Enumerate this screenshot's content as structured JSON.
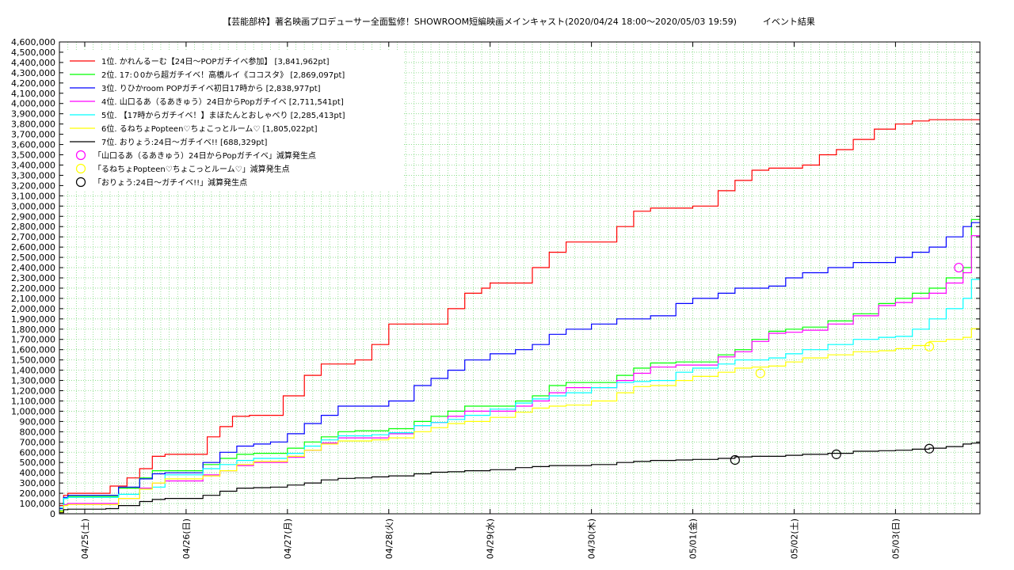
{
  "chart_data": {
    "type": "line",
    "title": "【芸能部枠】著名映画プロデューサー全面監修！SHOWROOM短編映画メインキャスト(2020/04/24 18:00〜2020/05/03 19:59)　　　イベント結果",
    "xlabel": "",
    "ylabel": "",
    "ylim": [
      0,
      4600000
    ],
    "y_tick_step": 100000,
    "y_tick_labels": [
      "0",
      "100,000",
      "200,000",
      "300,000",
      "400,000",
      "500,000",
      "600,000",
      "700,000",
      "800,000",
      "900,000",
      "1,000,000",
      "1,100,000",
      "1,200,000",
      "1,300,000",
      "1,400,000",
      "1,500,000",
      "1,600,000",
      "1,700,000",
      "1,800,000",
      "1,900,000",
      "2,000,000",
      "2,100,000",
      "2,200,000",
      "2,300,000",
      "2,400,000",
      "2,500,000",
      "2,600,000",
      "2,700,000",
      "2,800,000",
      "2,900,000",
      "3,000,000",
      "3,100,000",
      "3,200,000",
      "3,300,000",
      "3,400,000",
      "3,500,000",
      "3,600,000",
      "3,700,000",
      "3,800,000",
      "3,900,000",
      "4,000,000",
      "4,100,000",
      "4,200,000",
      "4,300,000",
      "4,400,000",
      "4,500,000",
      "4,600,000"
    ],
    "x_unit": "hours since 2020/04/24 18:00",
    "xlim": [
      0,
      218
    ],
    "x_ticks": [
      {
        "label": "04/25(土)",
        "x": 6
      },
      {
        "label": "04/26(日)",
        "x": 30
      },
      {
        "label": "04/27(月)",
        "x": 54
      },
      {
        "label": "04/28(火)",
        "x": 78
      },
      {
        "label": "04/29(水)",
        "x": 102
      },
      {
        "label": "04/30(木)",
        "x": 126
      },
      {
        "label": "05/01(金)",
        "x": 150
      },
      {
        "label": "05/02(土)",
        "x": 174
      },
      {
        "label": "05/03(日)",
        "x": 198
      }
    ],
    "grid": true,
    "legend_position": "top-left",
    "series": [
      {
        "name": "1位. かれんるーむ【24日〜POPガチイベ参加】 [3,841,962pt]",
        "color": "#ff0000",
        "x": [
          0,
          1,
          2,
          11,
          12,
          16,
          19,
          22,
          25,
          30,
          35,
          38,
          41,
          45,
          49,
          53,
          58,
          62,
          66,
          70,
          74,
          78,
          84,
          88,
          92,
          96,
          100,
          102,
          108,
          112,
          116,
          120,
          126,
          132,
          136,
          140,
          144,
          150,
          156,
          160,
          164,
          168,
          172,
          176,
          180,
          184,
          188,
          193,
          198,
          202,
          206,
          210,
          214,
          216,
          218
        ],
        "y": [
          80000,
          180000,
          200000,
          200000,
          270000,
          350000,
          440000,
          560000,
          580000,
          580000,
          750000,
          850000,
          950000,
          960000,
          960000,
          1150000,
          1350000,
          1460000,
          1460000,
          1500000,
          1650000,
          1850000,
          1850000,
          1850000,
          2000000,
          2150000,
          2200000,
          2250000,
          2250000,
          2400000,
          2550000,
          2650000,
          2650000,
          2800000,
          2950000,
          2980000,
          2980000,
          3000000,
          3150000,
          3250000,
          3350000,
          3370000,
          3370000,
          3400000,
          3500000,
          3550000,
          3650000,
          3750000,
          3800000,
          3830000,
          3841962,
          3841962,
          3841962,
          3841962,
          3841962
        ]
      },
      {
        "name": "2位. 17:０0から超ガチイベ！高橋ルイ《ココスタ》 [2,869,097pt]",
        "color": "#00ff00",
        "x": [
          0,
          1,
          2,
          11,
          14,
          19,
          22,
          25,
          30,
          34,
          38,
          42,
          46,
          50,
          54,
          58,
          62,
          66,
          70,
          74,
          78,
          84,
          88,
          92,
          96,
          102,
          108,
          112,
          116,
          120,
          126,
          132,
          136,
          140,
          146,
          150,
          156,
          160,
          164,
          168,
          172,
          176,
          182,
          188,
          194,
          198,
          202,
          206,
          210,
          214,
          216,
          218
        ],
        "y": [
          30000,
          150000,
          170000,
          170000,
          250000,
          350000,
          420000,
          420000,
          420000,
          480000,
          540000,
          580000,
          590000,
          590000,
          640000,
          700000,
          750000,
          800000,
          810000,
          810000,
          830000,
          900000,
          950000,
          1000000,
          1050000,
          1050000,
          1100000,
          1150000,
          1250000,
          1280000,
          1280000,
          1350000,
          1420000,
          1470000,
          1480000,
          1480000,
          1550000,
          1600000,
          1700000,
          1780000,
          1800000,
          1820000,
          1880000,
          1950000,
          2050000,
          2100000,
          2150000,
          2200000,
          2300000,
          2400000,
          2869097,
          2869097
        ]
      },
      {
        "name": "3位. りひかroom POPガチイベ初日17時から [2,838,977pt]",
        "color": "#0000ff",
        "x": [
          0,
          1,
          2,
          11,
          14,
          19,
          22,
          25,
          30,
          34,
          38,
          42,
          46,
          50,
          54,
          58,
          62,
          66,
          70,
          74,
          78,
          84,
          88,
          92,
          96,
          102,
          108,
          112,
          116,
          120,
          126,
          132,
          136,
          140,
          146,
          150,
          156,
          160,
          164,
          168,
          172,
          176,
          182,
          188,
          194,
          198,
          202,
          206,
          210,
          214,
          216,
          218
        ],
        "y": [
          50000,
          160000,
          180000,
          180000,
          260000,
          340000,
          390000,
          400000,
          400000,
          500000,
          600000,
          660000,
          680000,
          700000,
          780000,
          880000,
          960000,
          1050000,
          1050000,
          1050000,
          1100000,
          1250000,
          1320000,
          1400000,
          1500000,
          1560000,
          1600000,
          1650000,
          1750000,
          1800000,
          1850000,
          1900000,
          1900000,
          1930000,
          2050000,
          2100000,
          2150000,
          2200000,
          2200000,
          2220000,
          2300000,
          2350000,
          2400000,
          2450000,
          2450000,
          2500000,
          2550000,
          2600000,
          2700000,
          2800000,
          2838977,
          2838977
        ]
      },
      {
        "name": "4位. 山口るあ（るあきゅう）24日からPopガチイベ [2,711,541pt]",
        "color": "#ff00ff",
        "x": [
          0,
          1,
          2,
          11,
          14,
          19,
          22,
          25,
          30,
          34,
          38,
          42,
          46,
          50,
          54,
          58,
          62,
          66,
          70,
          74,
          78,
          84,
          88,
          92,
          96,
          102,
          108,
          112,
          116,
          120,
          126,
          132,
          136,
          140,
          146,
          150,
          156,
          160,
          164,
          168,
          172,
          176,
          182,
          188,
          194,
          198,
          202,
          206,
          210,
          214,
          216,
          218
        ],
        "y": [
          20000,
          90000,
          100000,
          100000,
          150000,
          250000,
          300000,
          320000,
          320000,
          380000,
          420000,
          470000,
          500000,
          500000,
          550000,
          620000,
          690000,
          740000,
          740000,
          740000,
          780000,
          860000,
          890000,
          950000,
          1000000,
          1000000,
          1050000,
          1100000,
          1180000,
          1230000,
          1230000,
          1300000,
          1370000,
          1430000,
          1450000,
          1450000,
          1530000,
          1580000,
          1680000,
          1760000,
          1770000,
          1790000,
          1850000,
          1930000,
          2030000,
          2060000,
          2100000,
          2150000,
          2250000,
          2350000,
          2711541,
          2711541
        ]
      },
      {
        "name": "5位. 【17時からガチイベ！】まほたんとおしゃべり [2,285,413pt]",
        "color": "#00ffff",
        "x": [
          0,
          1,
          2,
          11,
          14,
          19,
          22,
          25,
          30,
          34,
          38,
          42,
          46,
          50,
          54,
          58,
          62,
          66,
          70,
          74,
          78,
          84,
          88,
          92,
          96,
          102,
          108,
          112,
          116,
          120,
          126,
          132,
          136,
          140,
          146,
          150,
          156,
          160,
          164,
          168,
          172,
          176,
          182,
          188,
          194,
          198,
          202,
          206,
          210,
          214,
          216,
          218
        ],
        "y": [
          60000,
          150000,
          160000,
          160000,
          190000,
          240000,
          260000,
          380000,
          380000,
          440000,
          480000,
          520000,
          540000,
          540000,
          590000,
          660000,
          720000,
          760000,
          760000,
          770000,
          790000,
          860000,
          890000,
          920000,
          960000,
          1020000,
          1080000,
          1120000,
          1150000,
          1180000,
          1230000,
          1280000,
          1290000,
          1300000,
          1380000,
          1420000,
          1460000,
          1500000,
          1500000,
          1520000,
          1560000,
          1600000,
          1650000,
          1700000,
          1720000,
          1730000,
          1800000,
          1900000,
          2000000,
          2100000,
          2285413,
          2285413
        ]
      },
      {
        "name": "6位. るねちょPopteen♡ちょこっとルーム♡ [1,805,022pt]",
        "color": "#ffff00",
        "x": [
          0,
          1,
          2,
          11,
          14,
          19,
          22,
          25,
          30,
          34,
          38,
          42,
          46,
          50,
          54,
          58,
          62,
          66,
          70,
          74,
          78,
          84,
          88,
          92,
          96,
          102,
          108,
          112,
          116,
          120,
          126,
          132,
          136,
          140,
          146,
          150,
          156,
          160,
          164,
          168,
          172,
          176,
          182,
          188,
          194,
          198,
          202,
          206,
          210,
          214,
          216,
          218
        ],
        "y": [
          20000,
          80000,
          90000,
          90000,
          150000,
          240000,
          300000,
          340000,
          340000,
          370000,
          420000,
          480000,
          510000,
          510000,
          560000,
          620000,
          680000,
          710000,
          710000,
          720000,
          740000,
          800000,
          840000,
          880000,
          900000,
          940000,
          990000,
          1030000,
          1050000,
          1060000,
          1100000,
          1180000,
          1240000,
          1250000,
          1300000,
          1340000,
          1380000,
          1420000,
          1430000,
          1440000,
          1480000,
          1520000,
          1550000,
          1580000,
          1590000,
          1610000,
          1640000,
          1680000,
          1700000,
          1720000,
          1805022,
          1805022
        ]
      },
      {
        "name": "7位. おりょう:24日〜ガチイベ!! [688,329pt]",
        "color": "#000000",
        "x": [
          0,
          1,
          2,
          6,
          11,
          14,
          19,
          22,
          25,
          30,
          34,
          38,
          42,
          46,
          50,
          54,
          58,
          62,
          66,
          70,
          74,
          78,
          84,
          88,
          92,
          96,
          102,
          108,
          112,
          116,
          120,
          126,
          132,
          136,
          140,
          146,
          150,
          156,
          160,
          164,
          168,
          172,
          176,
          182,
          188,
          194,
          198,
          202,
          206,
          210,
          214,
          216,
          218
        ],
        "y": [
          10000,
          40000,
          45000,
          45000,
          50000,
          80000,
          120000,
          140000,
          150000,
          150000,
          180000,
          220000,
          250000,
          255000,
          260000,
          280000,
          300000,
          330000,
          345000,
          350000,
          360000,
          370000,
          390000,
          405000,
          410000,
          420000,
          430000,
          450000,
          460000,
          470000,
          470000,
          480000,
          500000,
          510000,
          520000,
          525000,
          530000,
          540000,
          555000,
          560000,
          560000,
          570000,
          580000,
          590000,
          610000,
          615000,
          620000,
          630000,
          640000,
          655000,
          680000,
          688329,
          688329
        ]
      }
    ],
    "markers": [
      {
        "name": "「山口るあ（るあきゅう）24日からPopガチイベ」減算発生点",
        "color": "#ff00ff",
        "points": [
          {
            "x": 213,
            "y": 2400000
          }
        ]
      },
      {
        "name": "「るねちょPopteen♡ちょこっとルーム♡」減算発生点",
        "color": "#ffff00",
        "points": [
          {
            "x": 166,
            "y": 1370000
          },
          {
            "x": 206,
            "y": 1630000
          }
        ]
      },
      {
        "name": "「おりょう:24日〜ガチイベ!!」減算発生点",
        "color": "#000000",
        "points": [
          {
            "x": 160,
            "y": 525000
          },
          {
            "x": 184,
            "y": 580000
          },
          {
            "x": 206,
            "y": 635000
          }
        ]
      }
    ]
  }
}
